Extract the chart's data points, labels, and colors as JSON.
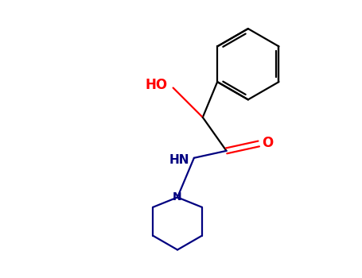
{
  "background_color": "#ffffff",
  "bond_color": "#000000",
  "heteroatom_color_O": "#ff0000",
  "heteroatom_color_N": "#000080",
  "label_HO": "HO",
  "label_NH": "HN",
  "label_O": "O",
  "label_N": "N",
  "figsize": [
    4.55,
    3.5
  ],
  "dpi": 100,
  "bond_lw": 1.6,
  "font_size_labels": 11
}
